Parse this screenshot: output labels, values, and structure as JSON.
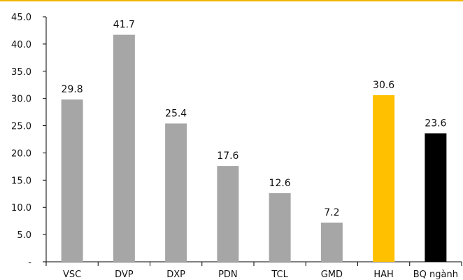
{
  "chart_data": {
    "type": "bar",
    "categories": [
      "VSC",
      "DVP",
      "DXP",
      "PDN",
      "TCL",
      "GMD",
      "HAH",
      "BQ ngành"
    ],
    "values": [
      29.8,
      41.7,
      25.4,
      17.6,
      12.6,
      7.2,
      30.6,
      23.6
    ],
    "value_labels": [
      "29.8",
      "41.7",
      "25.4",
      "17.6",
      "12.6",
      "7.2",
      "30.6",
      "23.6"
    ],
    "ylim": [
      0,
      45
    ],
    "yticks": [
      0,
      5,
      10,
      15,
      20,
      25,
      30,
      35,
      40,
      45
    ],
    "ytick_labels": [
      "-",
      "5.0",
      "10.0",
      "15.0",
      "20.0",
      "25.0",
      "30.0",
      "35.0",
      "40.0",
      "45.0"
    ],
    "grid": false,
    "legend": "none",
    "colors": {
      "default_bar": "#a6a6a6",
      "highlight_bar": "#ffc000",
      "average_bar": "#000000",
      "axis": "#000000",
      "top_border": "#f2b600"
    },
    "bar_colors": [
      "#a6a6a6",
      "#a6a6a6",
      "#a6a6a6",
      "#a6a6a6",
      "#a6a6a6",
      "#a6a6a6",
      "#ffc000",
      "#000000"
    ]
  }
}
